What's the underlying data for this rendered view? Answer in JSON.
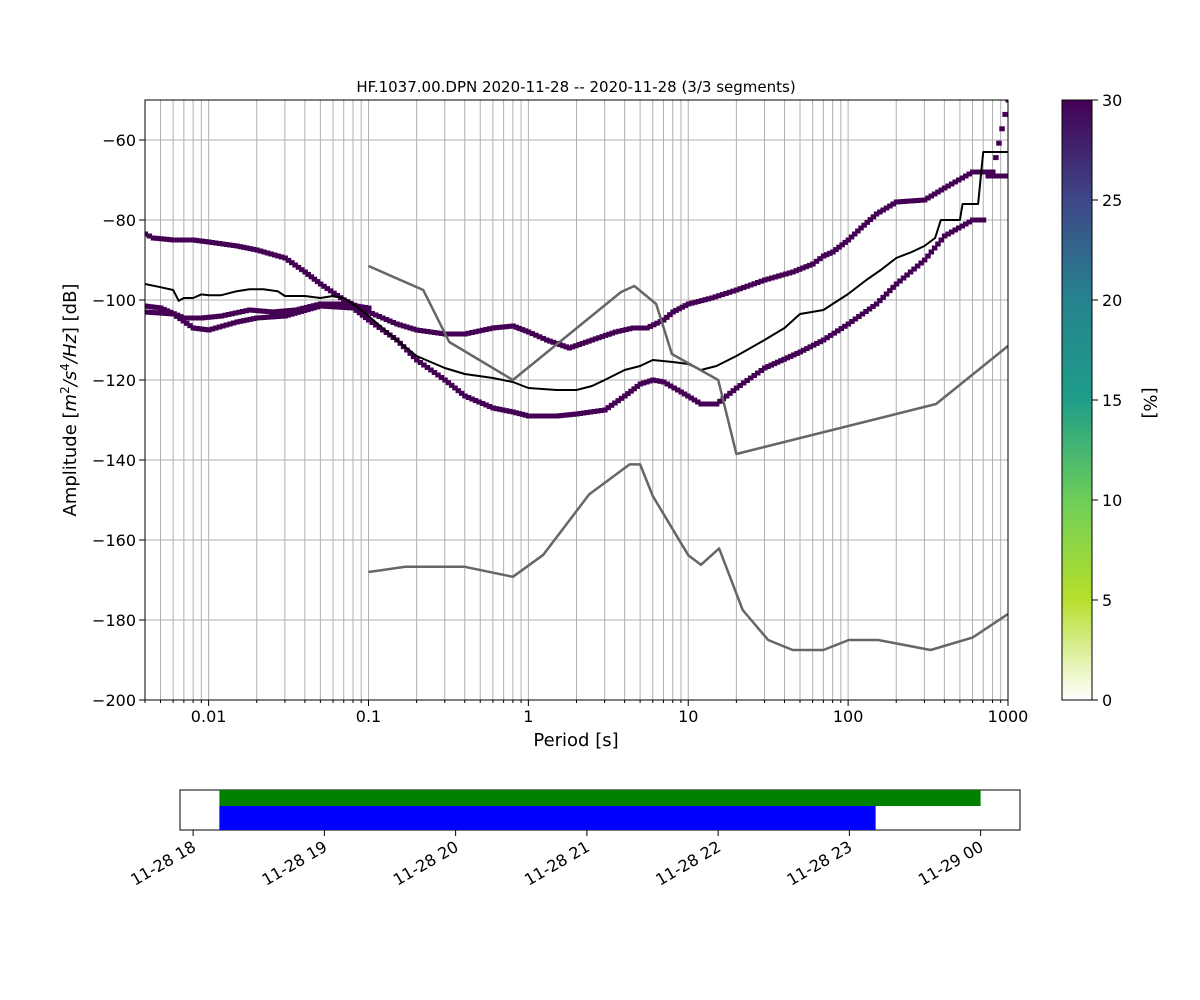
{
  "chart_data": [
    {
      "type": "heatmap",
      "title": "HF.1037.00.DPN   2020-11-28 -- 2020-11-28  (3/3 segments)",
      "xlabel": "Period [s]",
      "ylabel_prefix": "Amplitude [",
      "ylabel_unit": {
        "m": "m",
        "m_exp": "2",
        "slash": "/",
        "s": "s",
        "s_exp": "4",
        "slash2": "/",
        "hz": "Hz"
      },
      "ylabel_suffix": "] [dB]",
      "xscale": "log",
      "xlim": [
        0.004,
        1000
      ],
      "ylim": [
        -200,
        -50
      ],
      "grid": true,
      "x_ticks": [
        0.01,
        0.1,
        1,
        10,
        100,
        1000
      ],
      "x_tick_labels": [
        "0.01",
        "0.1",
        "1",
        "10",
        "100",
        "1000"
      ],
      "y_ticks": [
        -200,
        -180,
        -160,
        -140,
        -120,
        -100,
        -80,
        -60
      ],
      "y_tick_labels": [
        "−200",
        "−180",
        "−160",
        "−140",
        "−120",
        "−100",
        "−80",
        "−60"
      ],
      "colorbar": {
        "label": "[%]",
        "range": [
          0,
          30
        ],
        "ticks": [
          0,
          5,
          10,
          15,
          20,
          25,
          30
        ],
        "tick_labels": [
          "0",
          "5",
          "10",
          "15",
          "20",
          "25",
          "30"
        ],
        "colormap": "viridis_r"
      },
      "density_color": "#440154",
      "series": [
        {
          "role": "psd-band-upper",
          "color": "#440154",
          "points": [
            [
              0.004,
              -83.5
            ],
            [
              0.0045,
              -84.5
            ],
            [
              0.006,
              -85
            ],
            [
              0.008,
              -85
            ],
            [
              0.01,
              -85.5
            ],
            [
              0.015,
              -86.5
            ],
            [
              0.02,
              -87.5
            ],
            [
              0.03,
              -89.5
            ],
            [
              0.04,
              -93
            ],
            [
              0.05,
              -96
            ],
            [
              0.07,
              -100
            ],
            [
              0.1,
              -103
            ],
            [
              0.15,
              -106
            ],
            [
              0.2,
              -107.5
            ],
            [
              0.3,
              -108.5
            ],
            [
              0.4,
              -108.5
            ],
            [
              0.6,
              -107
            ],
            [
              0.8,
              -106.5
            ],
            [
              1,
              -108
            ],
            [
              1.3,
              -110
            ],
            [
              1.8,
              -112
            ],
            [
              2.5,
              -110
            ],
            [
              3.5,
              -108
            ],
            [
              4.5,
              -107
            ],
            [
              5.5,
              -107
            ],
            [
              7,
              -105
            ],
            [
              8,
              -103
            ],
            [
              10,
              -101
            ],
            [
              14,
              -99.5
            ],
            [
              20,
              -97.5
            ],
            [
              30,
              -95
            ],
            [
              45,
              -93
            ],
            [
              60,
              -91
            ],
            [
              70,
              -89
            ],
            [
              80,
              -88
            ],
            [
              100,
              -85
            ],
            [
              120,
              -82
            ],
            [
              150,
              -78.5
            ],
            [
              200,
              -75.5
            ],
            [
              300,
              -75
            ],
            [
              400,
              -72
            ],
            [
              600,
              -68
            ],
            [
              800,
              -68
            ],
            [
              1000,
              -50
            ]
          ]
        },
        {
          "role": "psd-band-middle",
          "color": "#440154",
          "points": [
            [
              0.004,
              -101.5
            ],
            [
              0.005,
              -102
            ],
            [
              0.007,
              -104.5
            ],
            [
              0.009,
              -104.5
            ],
            [
              0.012,
              -104
            ],
            [
              0.018,
              -102.5
            ],
            [
              0.025,
              -103
            ],
            [
              0.035,
              -102.5
            ],
            [
              0.05,
              -101
            ],
            [
              0.07,
              -101
            ],
            [
              0.1,
              -102
            ]
          ]
        },
        {
          "role": "psd-band-lower",
          "color": "#440154",
          "points": [
            [
              0.004,
              -103
            ],
            [
              0.006,
              -103.5
            ],
            [
              0.008,
              -107
            ],
            [
              0.01,
              -107.5
            ],
            [
              0.015,
              -105.5
            ],
            [
              0.02,
              -104.5
            ],
            [
              0.03,
              -104
            ],
            [
              0.05,
              -101.5
            ],
            [
              0.08,
              -102
            ],
            [
              0.1,
              -105
            ],
            [
              0.15,
              -110
            ],
            [
              0.2,
              -115
            ],
            [
              0.3,
              -120
            ],
            [
              0.4,
              -124
            ],
            [
              0.6,
              -127
            ],
            [
              0.8,
              -128
            ],
            [
              1,
              -129
            ],
            [
              1.5,
              -129
            ],
            [
              2,
              -128.5
            ],
            [
              3,
              -127.5
            ],
            [
              4,
              -124
            ],
            [
              5,
              -121
            ],
            [
              6,
              -120
            ],
            [
              7,
              -120.5
            ],
            [
              9,
              -123
            ],
            [
              12,
              -126
            ],
            [
              15,
              -126
            ],
            [
              20,
              -122
            ],
            [
              30,
              -117
            ],
            [
              50,
              -113
            ],
            [
              70,
              -110
            ],
            [
              100,
              -106
            ],
            [
              150,
              -101
            ],
            [
              200,
              -96
            ],
            [
              300,
              -90
            ],
            [
              400,
              -84
            ],
            [
              600,
              -80
            ],
            [
              700,
              -80
            ],
            [
              750,
              -69
            ],
            [
              1000,
              -69
            ]
          ]
        },
        {
          "role": "mean-psd",
          "color": "#000000",
          "points": [
            [
              0.004,
              -96
            ],
            [
              0.005,
              -96.8
            ],
            [
              0.006,
              -97.5
            ],
            [
              0.0065,
              -100.2
            ],
            [
              0.007,
              -99.5
            ],
            [
              0.008,
              -99.5
            ],
            [
              0.009,
              -98.6
            ],
            [
              0.01,
              -98.8
            ],
            [
              0.012,
              -98.8
            ],
            [
              0.015,
              -97.8
            ],
            [
              0.018,
              -97.3
            ],
            [
              0.022,
              -97.3
            ],
            [
              0.027,
              -97.8
            ],
            [
              0.03,
              -99
            ],
            [
              0.04,
              -99
            ],
            [
              0.05,
              -99.5
            ],
            [
              0.06,
              -99
            ],
            [
              0.07,
              -99.5
            ],
            [
              0.08,
              -101
            ],
            [
              0.1,
              -104
            ],
            [
              0.15,
              -110
            ],
            [
              0.2,
              -114
            ],
            [
              0.3,
              -117
            ],
            [
              0.4,
              -118.5
            ],
            [
              0.6,
              -119.5
            ],
            [
              0.8,
              -120.5
            ],
            [
              1,
              -122
            ],
            [
              1.5,
              -122.5
            ],
            [
              2,
              -122.5
            ],
            [
              2.5,
              -121.5
            ],
            [
              3,
              -120
            ],
            [
              4,
              -117.5
            ],
            [
              5,
              -116.5
            ],
            [
              6,
              -115
            ],
            [
              8,
              -115.5
            ],
            [
              10,
              -116
            ],
            [
              12,
              -117.5
            ],
            [
              15,
              -116.5
            ],
            [
              20,
              -114
            ],
            [
              30,
              -110
            ],
            [
              40,
              -107
            ],
            [
              50,
              -103.5
            ],
            [
              70,
              -102.5
            ],
            [
              80,
              -101
            ],
            [
              100,
              -98.5
            ],
            [
              130,
              -95
            ],
            [
              160,
              -92.5
            ],
            [
              200,
              -89.5
            ],
            [
              250,
              -88
            ],
            [
              300,
              -86.5
            ],
            [
              350,
              -84.5
            ],
            [
              380,
              -80
            ],
            [
              500,
              -80
            ],
            [
              520,
              -76
            ],
            [
              650,
              -76
            ],
            [
              700,
              -63
            ],
            [
              1000,
              -63
            ]
          ]
        },
        {
          "role": "noise-model-high",
          "color": "#666666",
          "points": [
            [
              0.1,
              -91.5
            ],
            [
              0.22,
              -97.5
            ],
            [
              0.32,
              -110.5
            ],
            [
              0.8,
              -120
            ],
            [
              3.8,
              -98
            ],
            [
              4.6,
              -96.5
            ],
            [
              6.3,
              -101
            ],
            [
              7.9,
              -113.5
            ],
            [
              15.4,
              -120
            ],
            [
              20,
              -138.5
            ],
            [
              354.8,
              -126
            ],
            [
              1000,
              -111.5
            ]
          ]
        },
        {
          "role": "noise-model-low",
          "color": "#666666",
          "points": [
            [
              0.1,
              -168
            ],
            [
              0.17,
              -166.7
            ],
            [
              0.4,
              -166.7
            ],
            [
              0.8,
              -169.2
            ],
            [
              1.24,
              -163.7
            ],
            [
              2.4,
              -148.6
            ],
            [
              4.3,
              -141.1
            ],
            [
              5,
              -141.1
            ],
            [
              6,
              -149
            ],
            [
              10,
              -163.8
            ],
            [
              12,
              -166.2
            ],
            [
              15.6,
              -162.1
            ],
            [
              21.9,
              -177.5
            ],
            [
              31.6,
              -185
            ],
            [
              45,
              -187.5
            ],
            [
              70,
              -187.5
            ],
            [
              101,
              -185
            ],
            [
              154,
              -185
            ],
            [
              328,
              -187.5
            ],
            [
              600,
              -184.4
            ],
            [
              1000,
              -178.5
            ]
          ]
        }
      ]
    },
    {
      "type": "bar",
      "title": "",
      "xlabel": "",
      "ylabel": "",
      "xlim_hours": [
        17.9,
        24.3
      ],
      "x_ticks_hours": [
        18,
        19,
        20,
        21,
        22,
        23,
        24
      ],
      "x_tick_labels": [
        "11-28 18",
        "11-28 19",
        "11-28 20",
        "11-28 21",
        "11-28 22",
        "11-28 23",
        "11-29 00"
      ],
      "series": [
        {
          "role": "data-coverage",
          "color": "#008000",
          "start_hour": 18.2,
          "end_hour": 24.0
        },
        {
          "role": "psd-coverage",
          "color": "#0000ff",
          "start_hour": 18.2,
          "end_hour": 23.2
        }
      ]
    }
  ]
}
